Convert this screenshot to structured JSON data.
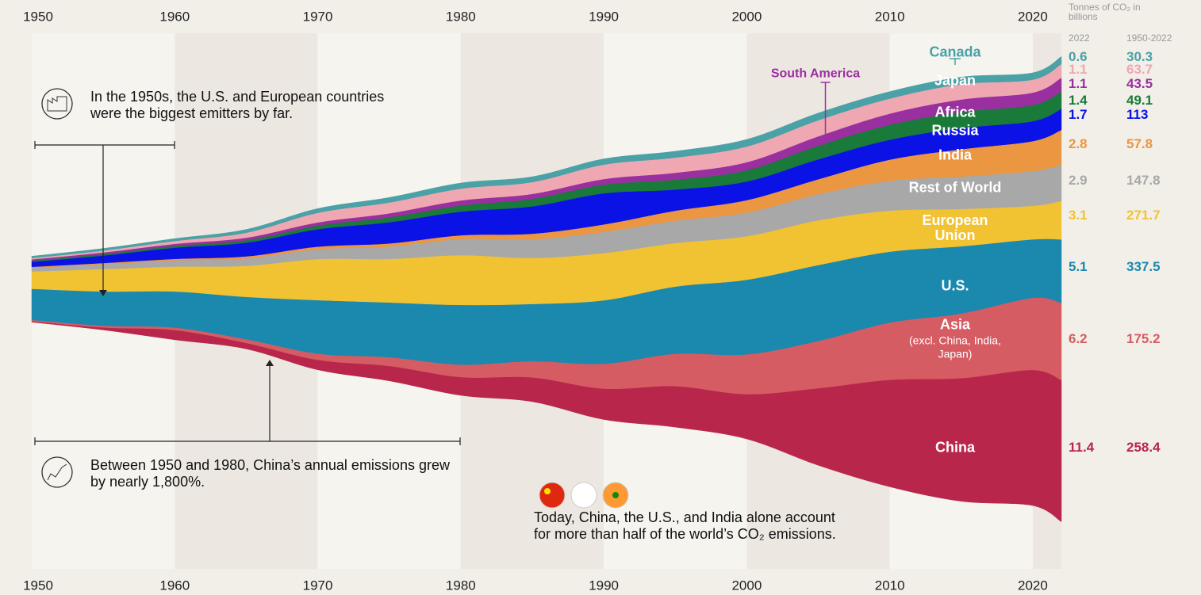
{
  "chart_data": {
    "type": "streamgraph",
    "x": [
      1950,
      1955,
      1960,
      1965,
      1970,
      1975,
      1980,
      1985,
      1990,
      1995,
      2000,
      2005,
      2010,
      2015,
      2020,
      2022
    ],
    "xlim": [
      1950,
      2022
    ],
    "xticks": [
      1950,
      1960,
      1970,
      1980,
      1990,
      2000,
      2010,
      2020
    ],
    "unit_label": "Tonnes of CO₂ in billions",
    "column_headers": [
      "2022",
      "1950-2022"
    ],
    "series": [
      {
        "name": "China",
        "color": "#b8264c",
        "values": [
          0.08,
          0.2,
          0.78,
          0.48,
          0.8,
          1.2,
          1.47,
          1.95,
          2.48,
          3.3,
          3.6,
          6.2,
          8.6,
          9.9,
          10.9,
          11.4
        ],
        "cumulative": 258.4
      },
      {
        "name": "Asia",
        "note": "(excl. China, India, Japan)",
        "color": "#d65c63",
        "values": [
          0.1,
          0.14,
          0.2,
          0.3,
          0.5,
          0.7,
          1.0,
          1.3,
          2.0,
          2.6,
          3.2,
          3.8,
          4.6,
          5.2,
          5.8,
          6.2
        ],
        "cumulative": 175.2
      },
      {
        "name": "U.S.",
        "color": "#1b88ae",
        "values": [
          2.5,
          2.75,
          2.9,
          3.4,
          4.3,
          4.4,
          4.8,
          4.6,
          5.1,
          5.4,
          6.0,
          6.1,
          5.7,
          5.4,
          4.7,
          5.1
        ],
        "cumulative": 337.5
      },
      {
        "name": "European Union",
        "color": "#f1c232",
        "values": [
          1.4,
          1.8,
          2.0,
          2.5,
          3.3,
          3.5,
          4.0,
          3.7,
          3.8,
          3.5,
          3.5,
          3.6,
          3.3,
          3.0,
          2.7,
          3.1
        ],
        "cumulative": 271.7
      },
      {
        "name": "Rest of World",
        "color": "#a8a8a8",
        "values": [
          0.3,
          0.4,
          0.5,
          0.6,
          0.8,
          1.0,
          1.3,
          1.5,
          1.7,
          1.8,
          1.9,
          2.1,
          2.4,
          2.6,
          2.8,
          2.9
        ],
        "cumulative": 147.8
      },
      {
        "name": "India",
        "color": "#eb9640",
        "values": [
          0.07,
          0.09,
          0.12,
          0.16,
          0.2,
          0.25,
          0.3,
          0.45,
          0.6,
          0.8,
          1.0,
          1.2,
          1.7,
          2.2,
          2.4,
          2.8
        ],
        "cumulative": 57.8
      },
      {
        "name": "Russia",
        "color": "#0a12e6",
        "values": [
          0.4,
          0.6,
          0.9,
          1.1,
          1.4,
          1.7,
          1.9,
          2.2,
          2.5,
          1.7,
          1.5,
          1.6,
          1.6,
          1.7,
          1.6,
          1.7
        ],
        "cumulative": 113.0
      },
      {
        "name": "Africa",
        "color": "#197a3a",
        "values": [
          0.1,
          0.12,
          0.15,
          0.2,
          0.3,
          0.4,
          0.5,
          0.6,
          0.7,
          0.8,
          0.9,
          1.1,
          1.2,
          1.3,
          1.3,
          1.4
        ],
        "cumulative": 49.1
      },
      {
        "name": "South America",
        "color": "#9a2fa0",
        "values": [
          0.1,
          0.13,
          0.16,
          0.2,
          0.25,
          0.32,
          0.4,
          0.4,
          0.45,
          0.55,
          0.65,
          0.75,
          0.9,
          1.0,
          1.0,
          1.1
        ],
        "cumulative": 43.5
      },
      {
        "name": "Japan",
        "color": "#efa8b2",
        "values": [
          0.1,
          0.15,
          0.23,
          0.4,
          0.77,
          0.87,
          0.95,
          0.95,
          1.16,
          1.22,
          1.26,
          1.29,
          1.21,
          1.23,
          1.04,
          1.1
        ],
        "cumulative": 63.7
      },
      {
        "name": "Canada",
        "color": "#4aa1a6",
        "values": [
          0.15,
          0.17,
          0.19,
          0.26,
          0.34,
          0.4,
          0.45,
          0.43,
          0.46,
          0.51,
          0.57,
          0.58,
          0.56,
          0.57,
          0.55,
          0.6
        ],
        "cumulative": 30.3
      }
    ],
    "annotations": [
      "In the 1950s, the U.S. and European countries were the biggest emitters by far.",
      "Between 1950 and 1980, China’s annual emissions grew by nearly 1,800%.",
      "Today, China, the U.S., and India alone account for more than half of the world’s CO₂ emissions."
    ]
  }
}
